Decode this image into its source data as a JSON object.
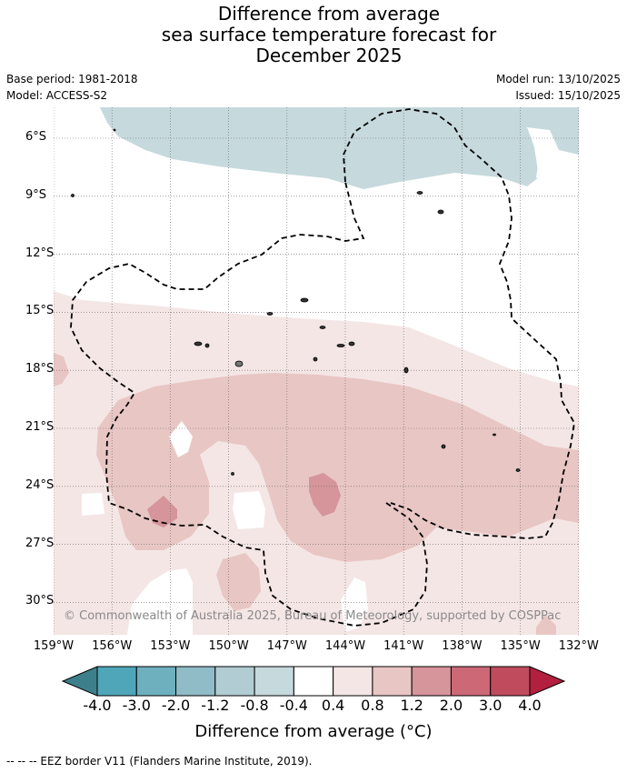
{
  "title_lines": [
    "Difference from average",
    "sea surface temperature forecast for",
    "December 2025"
  ],
  "base_period": "Base period: 1981-2018",
  "model": "Model: ACCESS-S2",
  "model_run": "Model run: 13/10/2025",
  "issued": "Issued: 15/10/2025",
  "copyright": "© Commonwealth of Australia 2025, Bureau of Meteorology, supported by COSPPac",
  "lat_labels": [
    "6°S",
    "9°S",
    "12°S",
    "15°S",
    "18°S",
    "21°S",
    "24°S",
    "27°S",
    "30°S"
  ],
  "lon_labels": [
    "159°W",
    "156°W",
    "153°W",
    "150°W",
    "147°W",
    "144°W",
    "141°W",
    "138°W",
    "135°W",
    "132°W"
  ],
  "colorbar": {
    "title": "Difference from average (°C)",
    "ticks": [
      "-4.0",
      "-3.0",
      "-2.0",
      "-1.2",
      "-0.8",
      "-0.4",
      "0.4",
      "0.8",
      "1.2",
      "2.0",
      "3.0",
      "4.0"
    ],
    "colors": [
      "#3e7f8c",
      "#4fa6b8",
      "#6fb0bf",
      "#8fbcc7",
      "#b2ccd3",
      "#c6d9dd",
      "#ffffff",
      "#f4e6e5",
      "#e8c6c4",
      "#d5959a",
      "#cd6876",
      "#c04b5d",
      "#b31f3f"
    ]
  },
  "legend_eez": "--  --  -- EEZ border V11 (Flanders Marine Institute, 2019)."
}
